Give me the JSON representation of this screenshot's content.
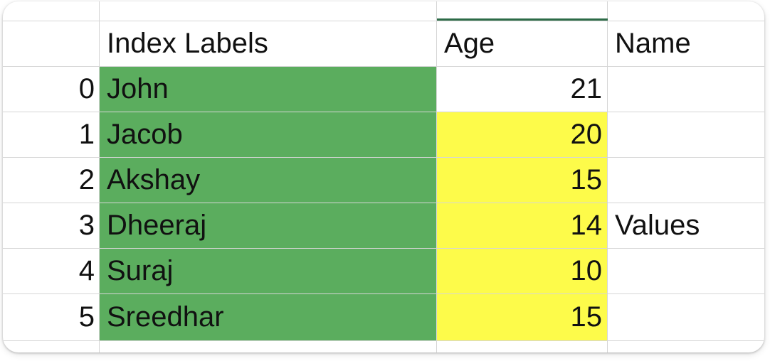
{
  "columns": {
    "index_labels": "Index Labels",
    "age": "Age",
    "name": "Name"
  },
  "rows": [
    {
      "index": "0",
      "label": "John",
      "age": "21",
      "name": ""
    },
    {
      "index": "1",
      "label": "Jacob",
      "age": "20",
      "name": ""
    },
    {
      "index": "2",
      "label": "Akshay",
      "age": "15",
      "name": ""
    },
    {
      "index": "3",
      "label": "Dheeraj",
      "age": "14",
      "name": "Values"
    },
    {
      "index": "4",
      "label": "Suraj",
      "age": "10",
      "name": ""
    },
    {
      "index": "5",
      "label": "Sreedhar",
      "age": "15",
      "name": ""
    }
  ],
  "colors": {
    "index_labels_fill": "#5bad5e",
    "values_fill": "#fdfb4a",
    "selected_column_indicator": "#2d6b47",
    "gridline": "#d6d6d6"
  }
}
